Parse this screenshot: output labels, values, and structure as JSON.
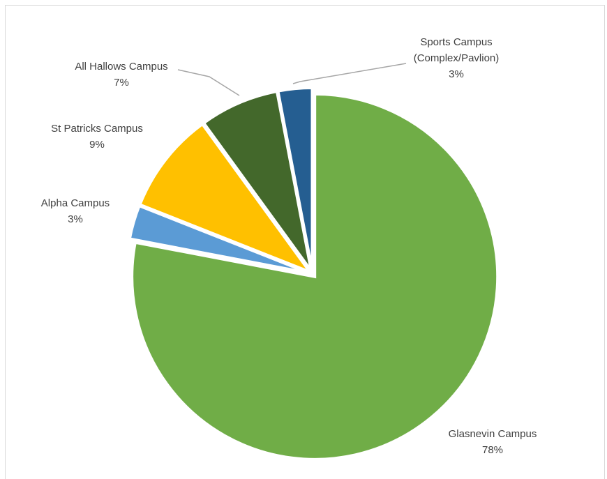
{
  "chart_data": {
    "type": "pie",
    "title": "",
    "start_angle_deg": 0,
    "direction": "clockwise",
    "explode_all": true,
    "slices": [
      {
        "name": "Glasnevin Campus",
        "percent_label": "78%",
        "value": 78,
        "color": "#70ad47"
      },
      {
        "name": "Alpha Campus",
        "percent_label": "3%",
        "value": 3,
        "color": "#5b9bd5"
      },
      {
        "name": "St Patricks Campus",
        "percent_label": "9%",
        "value": 9,
        "color": "#ffc000"
      },
      {
        "name": "All Hallows Campus",
        "percent_label": "7%",
        "value": 7,
        "color": "#43682b"
      },
      {
        "name": "Sports Campus (Complex/Pavlion)",
        "percent_label": "3%",
        "value": 3,
        "color": "#255e91"
      }
    ],
    "label_lines": [
      [
        "Glasnevin Campus",
        "78%"
      ],
      [
        "Alpha Campus",
        "3%"
      ],
      [
        "St Patricks Campus",
        "9%"
      ],
      [
        "All Hallows Campus",
        "7%"
      ],
      [
        "Sports Campus",
        "(Complex/Pavlion)",
        "3%"
      ]
    ]
  }
}
